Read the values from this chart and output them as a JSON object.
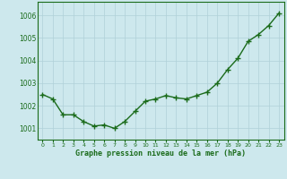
{
  "x": [
    0,
    1,
    2,
    3,
    4,
    5,
    6,
    7,
    8,
    9,
    10,
    11,
    12,
    13,
    14,
    15,
    16,
    17,
    18,
    19,
    20,
    21,
    22,
    23
  ],
  "y": [
    1002.5,
    1002.3,
    1001.6,
    1001.6,
    1001.3,
    1001.1,
    1001.15,
    1001.0,
    1001.3,
    1001.75,
    1002.2,
    1002.3,
    1002.45,
    1002.35,
    1002.3,
    1002.45,
    1002.6,
    1003.0,
    1003.6,
    1004.1,
    1004.85,
    1005.15,
    1005.55,
    1006.1
  ],
  "line_color": "#1a6b1a",
  "marker": "+",
  "marker_size": 4,
  "bg_color": "#cde8ed",
  "grid_color": "#b0d0d8",
  "xlabel": "Graphe pression niveau de la mer (hPa)",
  "xlabel_color": "#1a6b1a",
  "tick_color": "#1a6b1a",
  "ylim": [
    1000.5,
    1006.6
  ],
  "yticks": [
    1001,
    1002,
    1003,
    1004,
    1005,
    1006
  ],
  "xlim": [
    -0.5,
    23.5
  ],
  "xticks": [
    0,
    1,
    2,
    3,
    4,
    5,
    6,
    7,
    8,
    9,
    10,
    11,
    12,
    13,
    14,
    15,
    16,
    17,
    18,
    19,
    20,
    21,
    22,
    23
  ],
  "xtick_labels": [
    "0",
    "1",
    "2",
    "3",
    "4",
    "5",
    "6",
    "7",
    "8",
    "9",
    "10",
    "11",
    "12",
    "13",
    "14",
    "15",
    "16",
    "17",
    "18",
    "19",
    "20",
    "21",
    "22",
    "23"
  ],
  "line_width": 1.0
}
